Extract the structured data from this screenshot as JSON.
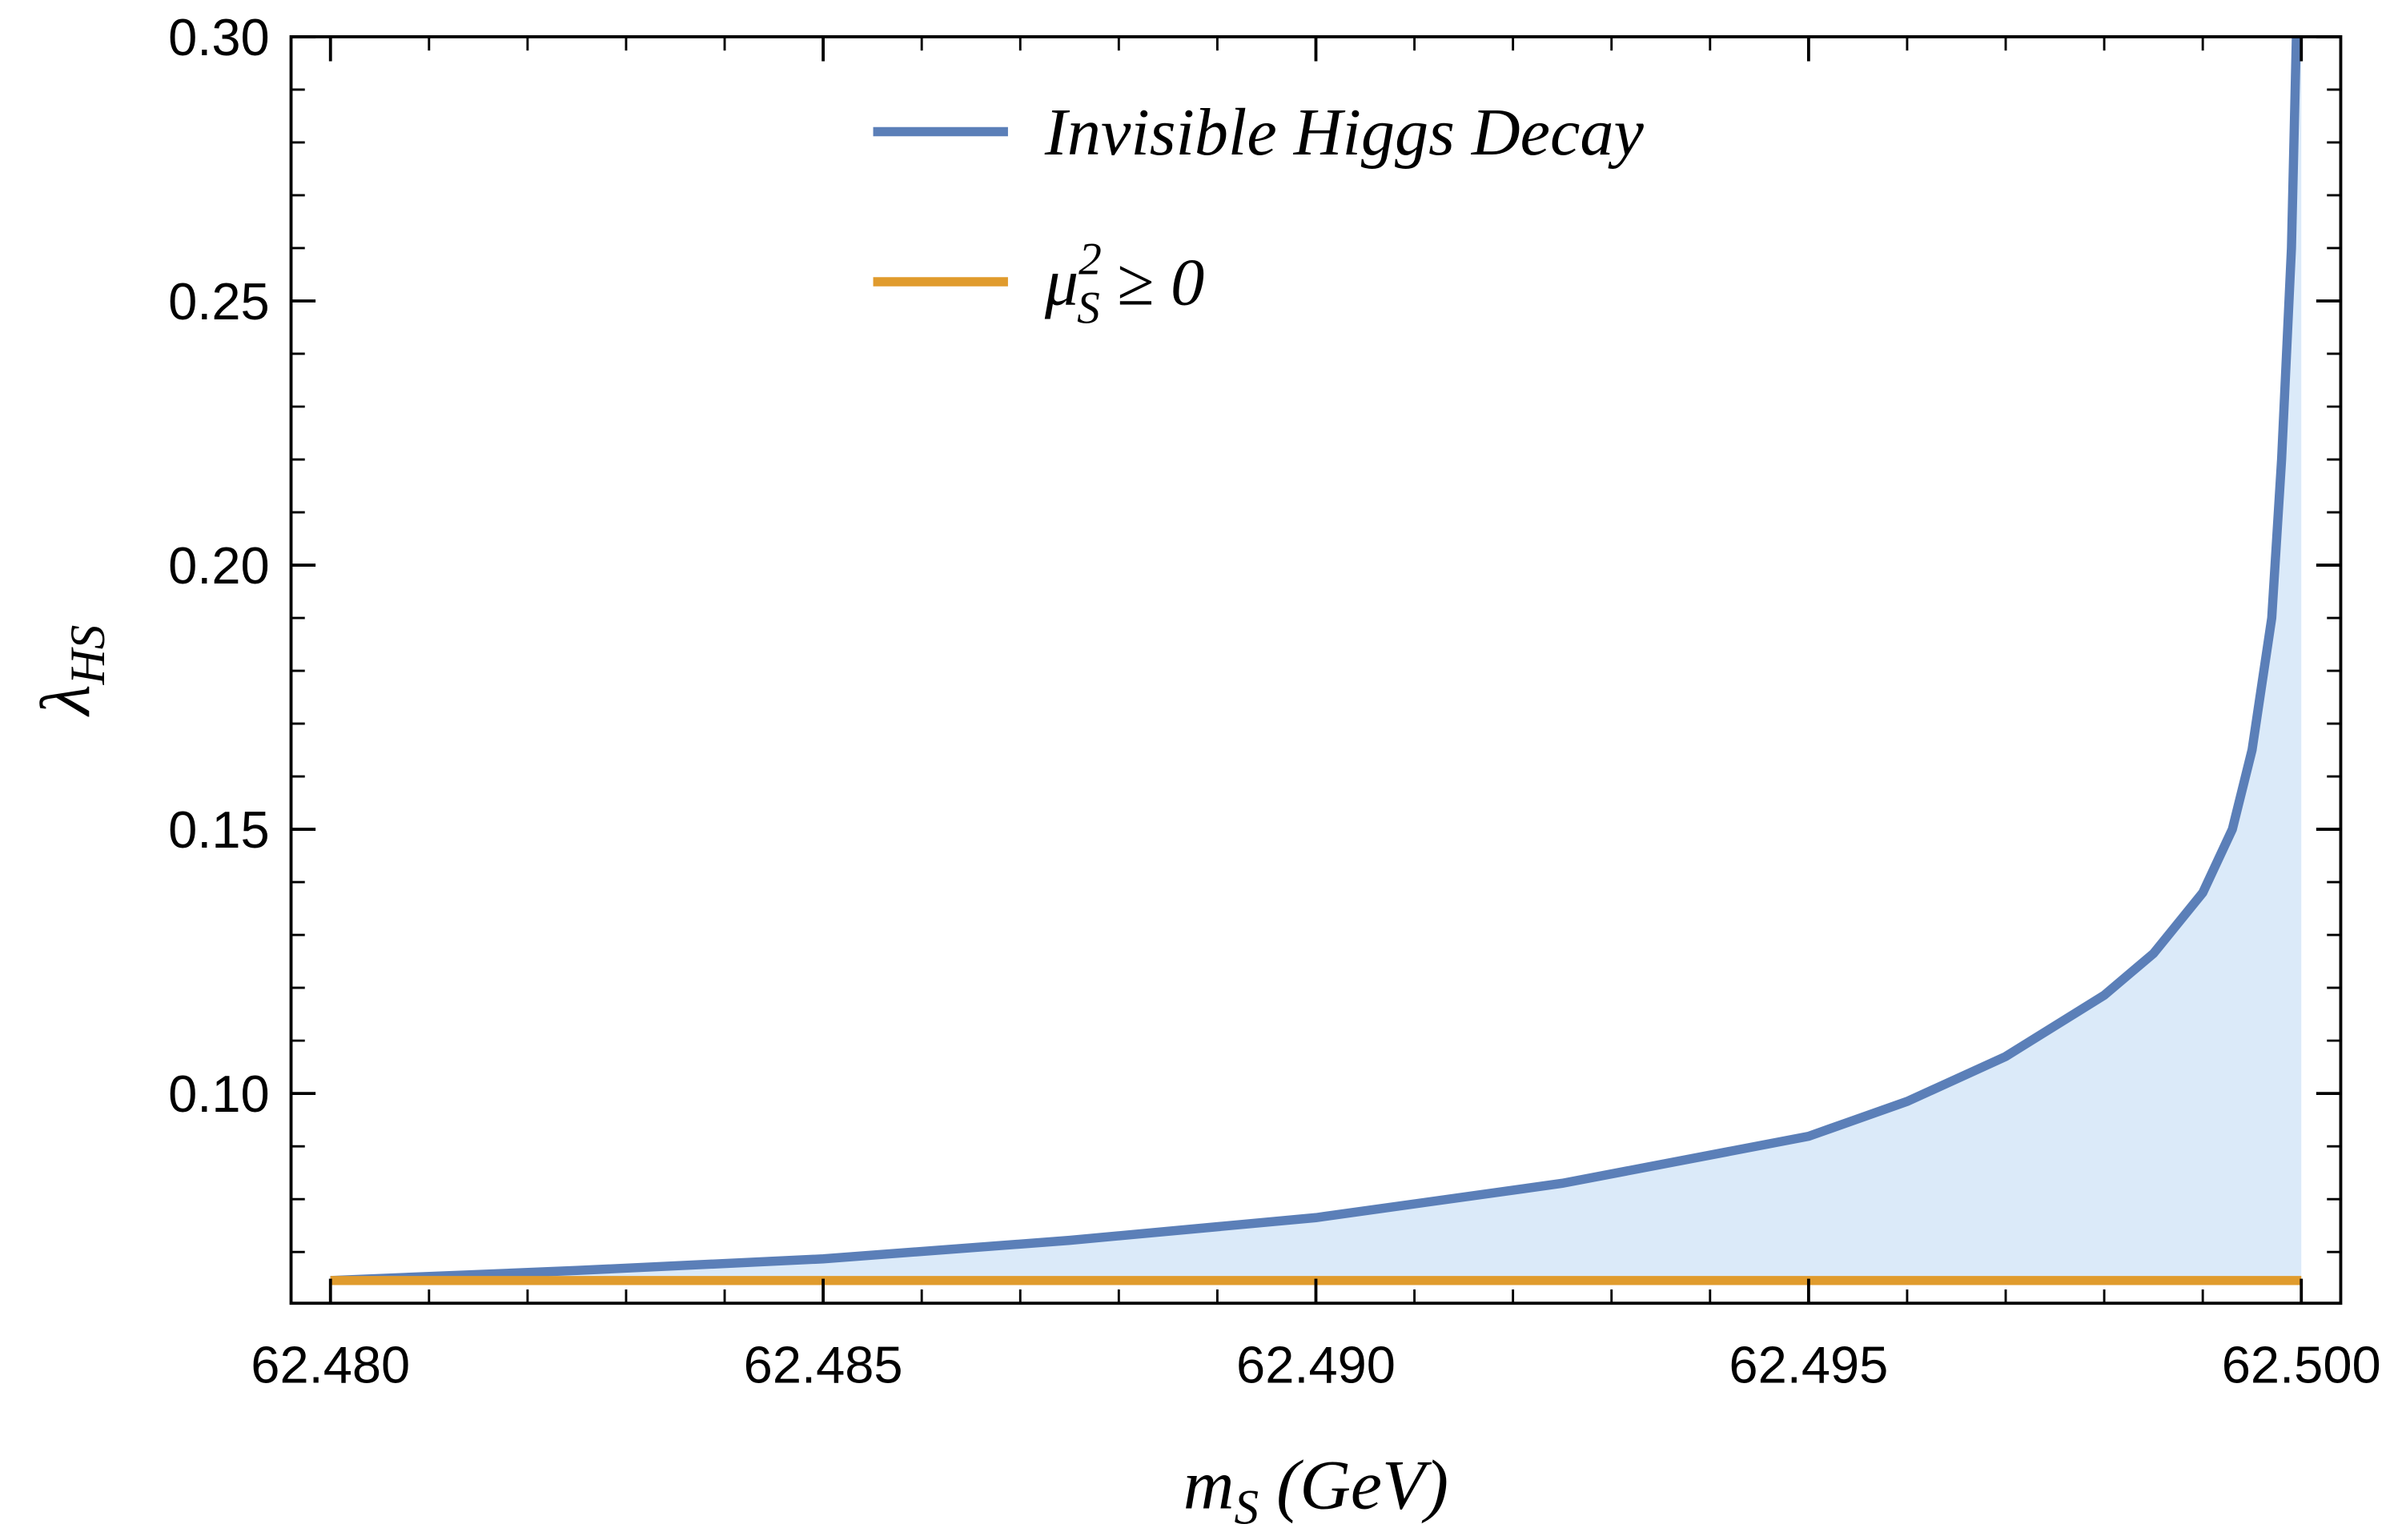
{
  "chart_data": {
    "type": "line",
    "xlabel": [
      "m",
      "S",
      " (GeV)"
    ],
    "ylabel": [
      "λ",
      "HS"
    ],
    "x": [
      62.48,
      62.4825,
      62.485,
      62.4875,
      62.49,
      62.4925,
      62.495,
      62.496,
      62.497,
      62.498,
      62.4985,
      62.499,
      62.4993,
      62.4995,
      62.4997,
      62.4998,
      62.4999,
      62.49995
    ],
    "series": [
      {
        "name": [
          "Invisible Higgs Decay"
        ],
        "color": "#5b7fb8",
        "values": [
          0.0646,
          0.0665,
          0.0687,
          0.0722,
          0.0765,
          0.083,
          0.0919,
          0.0985,
          0.107,
          0.1186,
          0.1265,
          0.138,
          0.15,
          0.165,
          0.19,
          0.22,
          0.26,
          0.3
        ]
      },
      {
        "name": [
          "μ",
          "2",
          "S",
          " ≥ 0"
        ],
        "color": "#e09b2d",
        "x": [
          62.48,
          62.5
        ],
        "values": [
          0.0646,
          0.0646
        ]
      }
    ],
    "fill_color": "#dbeaf9",
    "xlim": [
      62.4796,
      62.5004
    ],
    "ylim": [
      0.0603,
      0.3
    ],
    "xticks": [
      {
        "value": 62.48,
        "label": "62.480"
      },
      62.485,
      {
        "value": 62.49,
        "label": "62.490"
      },
      62.495,
      {
        "value": 62.5,
        "label": "62.500"
      }
    ],
    "yticks": [
      {
        "value": 0.1,
        "label": "0.10"
      },
      0.15,
      {
        "value": 0.2,
        "label": "0.20"
      },
      0.25,
      {
        "value": 0.3,
        "label": "0.30"
      }
    ],
    "legend": "top"
  }
}
